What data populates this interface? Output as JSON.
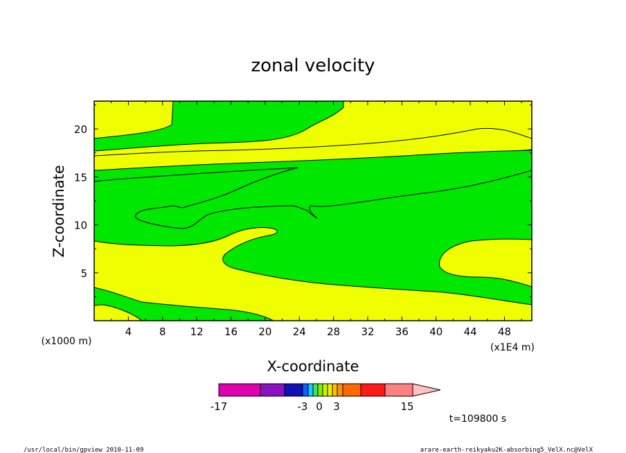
{
  "chart_data": {
    "type": "contour",
    "title": "zonal velocity",
    "xlabel": "X-coordinate",
    "ylabel": "Z-coordinate",
    "x_unit_left": "(x1000 m)",
    "x_unit_right": "(x1E4 m)",
    "xlim": [
      0,
      51.2
    ],
    "ylim": [
      0,
      22.9
    ],
    "x_ticks": [
      "4",
      "8",
      "12",
      "16",
      "20",
      "24",
      "28",
      "32",
      "36",
      "40",
      "44",
      "48"
    ],
    "y_ticks": [
      "5",
      "10",
      "15",
      "20"
    ],
    "time_label": "t=109800 s",
    "colorbar": {
      "colors": [
        "#e000b0",
        "#8a10c0",
        "#1010b8",
        "#1060ff",
        "#18c8ff",
        "#40e060",
        "#80f000",
        "#c8f800",
        "#f0f000",
        "#ffc000",
        "#ff9000",
        "#ff6800",
        "#ff1818",
        "#ff8080",
        "#ffc0c0"
      ],
      "tick_labels": [
        "-17",
        "-3",
        "0",
        "3",
        "15"
      ]
    },
    "regions": [
      {
        "name": "yellow-band",
        "color": "#f0ff00"
      },
      {
        "name": "green-band",
        "color": "#00e800"
      }
    ]
  },
  "footer": {
    "left": "/usr/local/bin/gpview   2010-11-09",
    "right": "arare-earth-reikyaku2K-absorbing5_VelX.nc@VelX"
  }
}
